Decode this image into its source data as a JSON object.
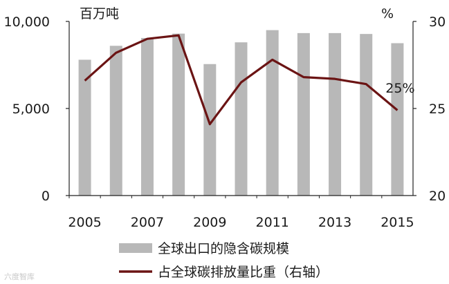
{
  "chart_data": {
    "type": "bar+line",
    "categories": [
      "2005",
      "2006",
      "2007",
      "2008",
      "2009",
      "2010",
      "2011",
      "2012",
      "2013",
      "2014",
      "2015"
    ],
    "x_tick_labels": [
      "2005",
      "2007",
      "2009",
      "2011",
      "2013",
      "2015"
    ],
    "series": [
      {
        "name": "全球出口的隐含碳规模",
        "type": "bar",
        "axis": "left",
        "color": "#b8b8b8",
        "values": [
          7800,
          8600,
          9050,
          9300,
          7550,
          8800,
          9500,
          9330,
          9330,
          9280,
          8750
        ]
      },
      {
        "name": "占全球碳排放量比重（右轴）",
        "type": "line",
        "axis": "right",
        "color": "#6b1414",
        "values": [
          26.6,
          28.2,
          29.0,
          29.2,
          24.1,
          26.5,
          27.8,
          26.8,
          26.7,
          26.4,
          24.9
        ]
      }
    ],
    "y_left": {
      "unit_label": "百万吨",
      "ylim": [
        0,
        10000
      ],
      "ticks": [
        "0",
        "5,000",
        "10,000"
      ]
    },
    "y_right": {
      "unit_label": "%",
      "ylim": [
        20,
        30
      ],
      "ticks": [
        "20",
        "25",
        "30"
      ]
    },
    "annotations": [
      {
        "text": "25%",
        "category": "2015"
      }
    ],
    "legend_position": "bottom",
    "grid": false
  },
  "watermark": "六度智库"
}
